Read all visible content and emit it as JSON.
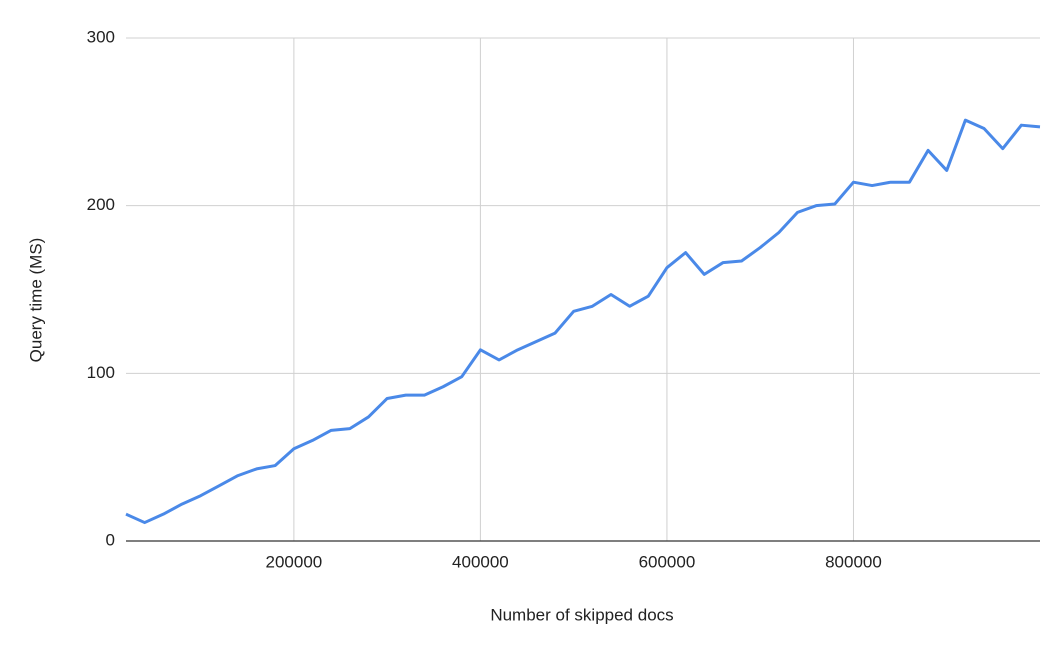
{
  "chart_data": {
    "type": "line",
    "xlabel": "Number of skipped docs",
    "ylabel": "Query time (MS)",
    "x": [
      20000,
      40000,
      60000,
      80000,
      100000,
      120000,
      140000,
      160000,
      180000,
      200000,
      220000,
      240000,
      260000,
      280000,
      300000,
      320000,
      340000,
      360000,
      380000,
      400000,
      420000,
      440000,
      460000,
      480000,
      500000,
      520000,
      540000,
      560000,
      580000,
      600000,
      620000,
      640000,
      660000,
      680000,
      700000,
      720000,
      740000,
      760000,
      780000,
      800000,
      820000,
      840000,
      860000,
      880000,
      900000,
      920000,
      940000,
      960000,
      980000,
      1000000
    ],
    "series": [
      {
        "color": "#4a89e8",
        "values": [
          16,
          11,
          16,
          22,
          27,
          33,
          39,
          43,
          45,
          55,
          60,
          66,
          67,
          74,
          85,
          87,
          87,
          92,
          98,
          114,
          108,
          114,
          119,
          124,
          137,
          140,
          147,
          140,
          146,
          163,
          172,
          159,
          166,
          167,
          175,
          184,
          196,
          200,
          201,
          214,
          212,
          214,
          214,
          233,
          221,
          251,
          246,
          234,
          248,
          247
        ]
      }
    ],
    "xlim": [
      20000,
      1000000
    ],
    "ylim": [
      0,
      300
    ],
    "xticks": [
      200000,
      400000,
      600000,
      800000
    ],
    "yticks": [
      0,
      100,
      200,
      300
    ],
    "grid": true
  }
}
